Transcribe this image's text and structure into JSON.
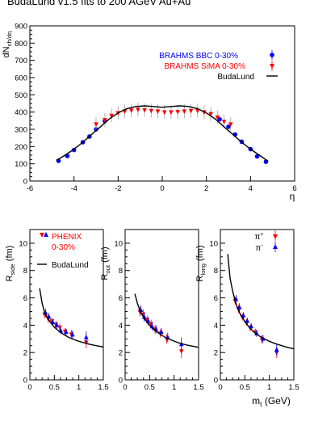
{
  "title": "BudaLund v1.5 fits to 200 AGeV Au+Au",
  "colors": {
    "bbc": "#0000ff",
    "sima": "#ff0000",
    "fit": "#000000",
    "err": "#a0a0a0",
    "phenix": "#ff0000"
  },
  "chart_data": [
    {
      "type": "scatter",
      "xlabel": "η",
      "ylabel": "dN_ch/dη",
      "xlim": [
        -6,
        6
      ],
      "ylim": [
        0,
        900
      ],
      "xticks": [
        -6,
        -4,
        -2,
        0,
        2,
        4,
        6
      ],
      "yticks": [
        0,
        100,
        200,
        300,
        400,
        500,
        600,
        700,
        800,
        900
      ],
      "legend": {
        "placement": "top-right",
        "bbc_label": "BRAHMS BBC  0-30%",
        "sima_label": "BRAHMS SiMA 0-30%",
        "fit_label": "BudaLund"
      },
      "series": [
        {
          "name": "BRAHMS BBC  0-30%",
          "marker": "circle",
          "x": [
            -4.7,
            -4.3,
            -4.0,
            -3.6,
            -3.3,
            -3.0,
            -2.6,
            2.6,
            3.0,
            3.3,
            3.6,
            4.0,
            4.3,
            4.7
          ],
          "y": [
            117,
            145,
            180,
            225,
            258,
            300,
            348,
            358,
            315,
            270,
            228,
            185,
            143,
            112
          ],
          "yerr": [
            4,
            5,
            5,
            6,
            7,
            8,
            8,
            8,
            8,
            7,
            6,
            5,
            5,
            4
          ]
        },
        {
          "name": "BRAHMS SiMA 0-30%",
          "marker": "triangle-down",
          "x": [
            -3.0,
            -2.6,
            -2.3,
            -2.0,
            -1.7,
            -1.4,
            -1.1,
            -0.8,
            -0.5,
            -0.2,
            0.1,
            0.4,
            0.7,
            1.0,
            1.3,
            1.6,
            1.9,
            2.2,
            2.5,
            2.8,
            3.1
          ],
          "y": [
            330,
            355,
            380,
            395,
            405,
            410,
            415,
            412,
            408,
            405,
            400,
            400,
            402,
            405,
            408,
            408,
            400,
            390,
            370,
            345,
            330
          ],
          "yerr": [
            40,
            40,
            40,
            40,
            40,
            40,
            40,
            40,
            40,
            40,
            40,
            40,
            40,
            40,
            40,
            40,
            40,
            40,
            40,
            40,
            40
          ]
        },
        {
          "name": "BudaLund",
          "line": true,
          "x": [
            -4.8,
            -4.4,
            -4.0,
            -3.6,
            -3.2,
            -2.8,
            -2.4,
            -2.0,
            -1.6,
            -1.2,
            -0.8,
            -0.4,
            0.0,
            0.4,
            0.8,
            1.2,
            1.6,
            2.0,
            2.4,
            2.8,
            3.2,
            3.6,
            4.0,
            4.4,
            4.8
          ],
          "y": [
            120,
            150,
            185,
            225,
            270,
            315,
            360,
            395,
            420,
            432,
            436,
            432,
            428,
            432,
            436,
            432,
            420,
            395,
            360,
            315,
            270,
            225,
            185,
            150,
            115
          ]
        }
      ]
    },
    {
      "type": "scatter",
      "ylabel": "R_side (fm)",
      "xlim": [
        0,
        1.5
      ],
      "ylim": [
        0,
        11
      ],
      "xticks": [
        0,
        0.5,
        1,
        1.5
      ],
      "yticks": [
        0,
        2,
        4,
        6,
        8,
        10
      ],
      "legend": {
        "placement": "top-right",
        "phenix_line1": "PHENIX",
        "phenix_line2": "0-30%",
        "fit_label": "BudaLund"
      },
      "series": [
        {
          "name": "π+",
          "marker": "triangle-down",
          "x": [
            0.3,
            0.37,
            0.45,
            0.53,
            0.61,
            0.72,
            0.85,
            1.15
          ],
          "y": [
            4.8,
            4.5,
            4.3,
            4.05,
            3.85,
            3.55,
            3.35,
            2.75
          ],
          "yerr": [
            0.3,
            0.3,
            0.25,
            0.25,
            0.25,
            0.25,
            0.3,
            0.45
          ]
        },
        {
          "name": "π-",
          "marker": "triangle-up",
          "x": [
            0.32,
            0.39,
            0.47,
            0.55,
            0.63,
            0.74,
            0.87,
            1.15
          ],
          "y": [
            4.9,
            4.6,
            4.2,
            4.0,
            3.6,
            3.5,
            3.3,
            3.1
          ],
          "yerr": [
            0.3,
            0.3,
            0.25,
            0.25,
            0.25,
            0.25,
            0.3,
            0.45
          ]
        },
        {
          "name": "BudaLund",
          "line": true,
          "x": [
            0.2,
            0.25,
            0.3,
            0.35,
            0.4,
            0.5,
            0.6,
            0.7,
            0.8,
            0.9,
            1.0,
            1.1,
            1.2,
            1.3,
            1.4,
            1.5
          ],
          "y": [
            6.7,
            5.6,
            4.95,
            4.6,
            4.3,
            3.85,
            3.55,
            3.3,
            3.1,
            2.95,
            2.82,
            2.72,
            2.62,
            2.54,
            2.47,
            2.4
          ]
        }
      ]
    },
    {
      "type": "scatter",
      "ylabel": "R_out (fm)",
      "xlim": [
        0,
        1.5
      ],
      "ylim": [
        0,
        11
      ],
      "xticks": [
        0,
        0.5,
        1,
        1.5
      ],
      "yticks": [
        0,
        2,
        4,
        6,
        8,
        10
      ],
      "series": [
        {
          "name": "π+",
          "marker": "triangle-down",
          "x": [
            0.3,
            0.37,
            0.45,
            0.53,
            0.61,
            0.72,
            0.85,
            1.15
          ],
          "y": [
            5.0,
            4.8,
            4.4,
            4.1,
            3.7,
            3.4,
            3.0,
            2.1
          ],
          "yerr": [
            0.35,
            0.35,
            0.3,
            0.3,
            0.3,
            0.3,
            0.35,
            0.5
          ]
        },
        {
          "name": "π-",
          "marker": "triangle-up",
          "x": [
            0.32,
            0.39,
            0.47,
            0.55,
            0.63,
            0.74,
            0.87,
            1.15
          ],
          "y": [
            5.1,
            4.6,
            4.3,
            3.9,
            3.7,
            3.5,
            3.1,
            2.6
          ],
          "yerr": [
            0.35,
            0.35,
            0.3,
            0.3,
            0.3,
            0.3,
            0.35,
            0.5
          ]
        },
        {
          "name": "BudaLund",
          "line": true,
          "x": [
            0.2,
            0.25,
            0.3,
            0.35,
            0.4,
            0.5,
            0.6,
            0.7,
            0.8,
            0.9,
            1.0,
            1.1,
            1.2,
            1.3,
            1.4,
            1.5
          ],
          "y": [
            6.3,
            5.6,
            5.1,
            4.75,
            4.45,
            4.0,
            3.65,
            3.38,
            3.15,
            2.98,
            2.83,
            2.7,
            2.6,
            2.52,
            2.45,
            2.38
          ]
        }
      ]
    },
    {
      "type": "scatter",
      "xlabel": "m_t (GeV)",
      "ylabel": "R_long (fm)",
      "xlim": [
        0,
        1.5
      ],
      "ylim": [
        0,
        11
      ],
      "xticks": [
        0,
        0.5,
        1,
        1.5
      ],
      "yticks": [
        0,
        2,
        4,
        6,
        8,
        10
      ],
      "legend": {
        "placement": "top-right",
        "piplus_label": "π+",
        "piminus_label": "π-"
      },
      "series": [
        {
          "name": "π+",
          "marker": "triangle-down",
          "x": [
            0.3,
            0.37,
            0.45,
            0.53,
            0.61,
            0.72,
            0.85,
            1.15
          ],
          "y": [
            5.8,
            5.2,
            4.6,
            4.2,
            3.8,
            3.5,
            2.95,
            2.0
          ],
          "yerr": [
            0.3,
            0.3,
            0.25,
            0.25,
            0.25,
            0.25,
            0.3,
            0.4
          ]
        },
        {
          "name": "π-",
          "marker": "triangle-up",
          "x": [
            0.32,
            0.39,
            0.47,
            0.55,
            0.63,
            0.74,
            0.87,
            1.15
          ],
          "y": [
            5.9,
            5.3,
            4.7,
            4.3,
            3.9,
            3.4,
            3.0,
            2.2
          ],
          "yerr": [
            0.3,
            0.3,
            0.25,
            0.25,
            0.25,
            0.25,
            0.3,
            0.4
          ]
        },
        {
          "name": "BudaLund",
          "line": true,
          "x": [
            0.15,
            0.2,
            0.25,
            0.3,
            0.35,
            0.4,
            0.5,
            0.6,
            0.7,
            0.8,
            0.9,
            1.0,
            1.1,
            1.2,
            1.3,
            1.4,
            1.5
          ],
          "y": [
            9.2,
            7.4,
            6.5,
            5.8,
            5.25,
            4.85,
            4.25,
            3.8,
            3.45,
            3.2,
            3.0,
            2.82,
            2.68,
            2.56,
            2.45,
            2.35,
            2.27
          ]
        }
      ]
    }
  ]
}
